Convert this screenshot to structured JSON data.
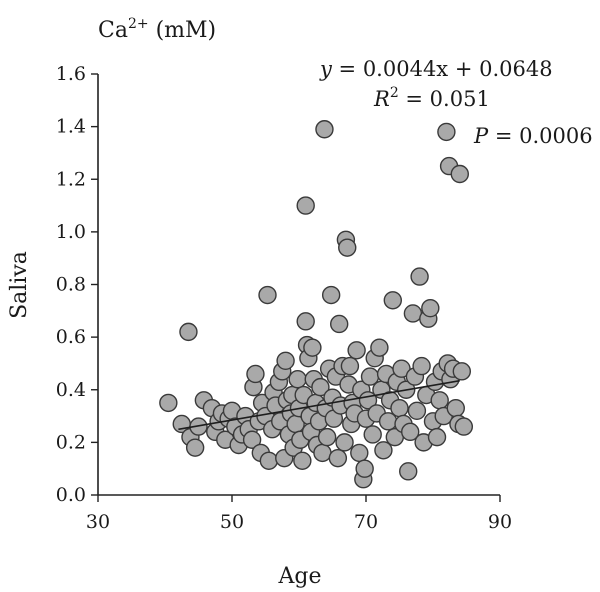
{
  "chart_data": {
    "type": "scatter",
    "xlabel": "Age",
    "ylabel": "Saliva",
    "unit_label": {
      "base": "Ca",
      "sup": "2+",
      "suffix": " (mM)"
    },
    "xlim": [
      30,
      90
    ],
    "ylim": [
      0.0,
      1.6
    ],
    "x_ticks": [
      "30",
      "50",
      "70",
      "90"
    ],
    "y_ticks": [
      "0.0",
      "0.2",
      "0.4",
      "0.6",
      "0.8",
      "1.0",
      "1.2",
      "1.4",
      "1.6"
    ],
    "grid": false,
    "regression": {
      "slope": 0.0044,
      "intercept": 0.0648,
      "x_range": [
        42,
        84
      ],
      "equation_y": "y",
      "equation_rest": " = 0.0044x + 0.0648",
      "r2_base": "R",
      "r2_sup": "2",
      "r2_rest": " = 0.051",
      "p_base": "P",
      "p_rest": " = 0.0006"
    },
    "points": [
      [
        40.5,
        0.35
      ],
      [
        42.5,
        0.27
      ],
      [
        43.5,
        0.62
      ],
      [
        43.8,
        0.22
      ],
      [
        44.5,
        0.18
      ],
      [
        45.0,
        0.26
      ],
      [
        45.8,
        0.36
      ],
      [
        47.0,
        0.33
      ],
      [
        47.5,
        0.24
      ],
      [
        48.0,
        0.28
      ],
      [
        48.5,
        0.31
      ],
      [
        49.0,
        0.21
      ],
      [
        49.5,
        0.29
      ],
      [
        50.0,
        0.32
      ],
      [
        50.5,
        0.26
      ],
      [
        51.0,
        0.19
      ],
      [
        51.5,
        0.23
      ],
      [
        52.0,
        0.3
      ],
      [
        52.5,
        0.25
      ],
      [
        53.0,
        0.21
      ],
      [
        53.2,
        0.41
      ],
      [
        53.5,
        0.46
      ],
      [
        54.0,
        0.28
      ],
      [
        54.3,
        0.16
      ],
      [
        54.5,
        0.35
      ],
      [
        55.0,
        0.3
      ],
      [
        55.3,
        0.76
      ],
      [
        55.5,
        0.13
      ],
      [
        56.0,
        0.25
      ],
      [
        56.2,
        0.39
      ],
      [
        56.5,
        0.34
      ],
      [
        57.0,
        0.43
      ],
      [
        57.2,
        0.28
      ],
      [
        57.5,
        0.47
      ],
      [
        57.8,
        0.14
      ],
      [
        58.0,
        0.51
      ],
      [
        58.2,
        0.36
      ],
      [
        58.5,
        0.23
      ],
      [
        58.8,
        0.31
      ],
      [
        59.0,
        0.38
      ],
      [
        59.2,
        0.18
      ],
      [
        59.5,
        0.27
      ],
      [
        59.8,
        0.44
      ],
      [
        60.0,
        0.33
      ],
      [
        60.2,
        0.21
      ],
      [
        60.5,
        0.13
      ],
      [
        60.7,
        0.38
      ],
      [
        61.0,
        0.66
      ],
      [
        61.0,
        1.1
      ],
      [
        61.2,
        0.57
      ],
      [
        61.4,
        0.52
      ],
      [
        61.6,
        0.3
      ],
      [
        61.8,
        0.24
      ],
      [
        62.0,
        0.56
      ],
      [
        62.2,
        0.44
      ],
      [
        62.5,
        0.35
      ],
      [
        62.7,
        0.19
      ],
      [
        63.0,
        0.28
      ],
      [
        63.2,
        0.41
      ],
      [
        63.5,
        0.16
      ],
      [
        63.8,
        1.39
      ],
      [
        64.0,
        0.33
      ],
      [
        64.2,
        0.22
      ],
      [
        64.5,
        0.48
      ],
      [
        64.8,
        0.76
      ],
      [
        65.0,
        0.37
      ],
      [
        65.2,
        0.29
      ],
      [
        65.5,
        0.45
      ],
      [
        65.8,
        0.14
      ],
      [
        66.0,
        0.65
      ],
      [
        66.2,
        0.34
      ],
      [
        66.5,
        0.49
      ],
      [
        66.8,
        0.2
      ],
      [
        67.0,
        0.97
      ],
      [
        67.2,
        0.94
      ],
      [
        67.4,
        0.42
      ],
      [
        67.6,
        0.49
      ],
      [
        67.8,
        0.27
      ],
      [
        68.0,
        0.35
      ],
      [
        68.3,
        0.31
      ],
      [
        68.6,
        0.55
      ],
      [
        69.0,
        0.16
      ],
      [
        69.3,
        0.4
      ],
      [
        69.6,
        0.06
      ],
      [
        69.8,
        0.1
      ],
      [
        70.0,
        0.29
      ],
      [
        70.3,
        0.36
      ],
      [
        70.6,
        0.45
      ],
      [
        71.0,
        0.23
      ],
      [
        71.3,
        0.52
      ],
      [
        71.6,
        0.31
      ],
      [
        72.0,
        0.56
      ],
      [
        72.3,
        0.4
      ],
      [
        72.6,
        0.17
      ],
      [
        73.0,
        0.46
      ],
      [
        73.3,
        0.28
      ],
      [
        73.6,
        0.36
      ],
      [
        74.0,
        0.74
      ],
      [
        74.3,
        0.22
      ],
      [
        74.6,
        0.43
      ],
      [
        75.0,
        0.33
      ],
      [
        75.3,
        0.48
      ],
      [
        75.6,
        0.27
      ],
      [
        76.0,
        0.4
      ],
      [
        76.3,
        0.09
      ],
      [
        76.6,
        0.24
      ],
      [
        77.0,
        0.69
      ],
      [
        77.3,
        0.45
      ],
      [
        77.6,
        0.32
      ],
      [
        78.0,
        0.83
      ],
      [
        78.3,
        0.49
      ],
      [
        78.6,
        0.2
      ],
      [
        79.0,
        0.38
      ],
      [
        79.3,
        0.67
      ],
      [
        79.6,
        0.71
      ],
      [
        80.0,
        0.28
      ],
      [
        80.3,
        0.43
      ],
      [
        80.6,
        0.22
      ],
      [
        81.0,
        0.36
      ],
      [
        81.3,
        0.47
      ],
      [
        81.6,
        0.3
      ],
      [
        82.0,
        1.38
      ],
      [
        82.2,
        0.5
      ],
      [
        82.4,
        1.25
      ],
      [
        82.6,
        0.44
      ],
      [
        83.0,
        0.48
      ],
      [
        83.4,
        0.33
      ],
      [
        83.8,
        0.27
      ],
      [
        84.0,
        1.22
      ],
      [
        84.3,
        0.47
      ],
      [
        84.6,
        0.26
      ]
    ]
  }
}
